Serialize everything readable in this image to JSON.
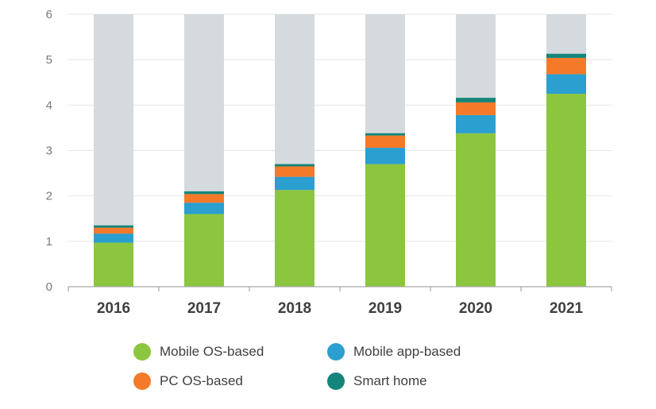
{
  "colors": {
    "mobile_os": "#8cc63f",
    "mobile_app": "#2a9fd0",
    "pc_os": "#f47a2a",
    "smart_home": "#14857a",
    "background_column": "#d4dadd",
    "grid": "#e4e4e4",
    "axis": "#a8a8a8"
  },
  "chart_data": {
    "type": "bar",
    "stacked": true,
    "categories": [
      "2016",
      "2017",
      "2018",
      "2019",
      "2020",
      "2021"
    ],
    "series": [
      {
        "name": "Mobile OS-based",
        "color": "#8cc63f",
        "values": [
          0.97,
          1.6,
          2.13,
          2.7,
          3.38,
          4.25
        ]
      },
      {
        "name": "Mobile app-based",
        "color": "#2a9fd0",
        "values": [
          0.2,
          0.25,
          0.29,
          0.36,
          0.4,
          0.43
        ]
      },
      {
        "name": "PC OS-based",
        "color": "#f47a2a",
        "values": [
          0.13,
          0.19,
          0.23,
          0.27,
          0.28,
          0.36
        ]
      },
      {
        "name": "Smart home",
        "color": "#14857a",
        "values": [
          0.05,
          0.06,
          0.05,
          0.05,
          0.1,
          0.09
        ]
      }
    ],
    "background_max": 6,
    "ylim": [
      0,
      6
    ],
    "yticks": [
      "0",
      "1",
      "2",
      "3",
      "4",
      "5",
      "6"
    ],
    "grid": true,
    "legend_position": "bottom"
  },
  "legend": {
    "items": [
      {
        "label": "Mobile OS-based",
        "color": "#8cc63f"
      },
      {
        "label": "Mobile app-based",
        "color": "#2a9fd0"
      },
      {
        "label": "PC OS-based",
        "color": "#f47a2a"
      },
      {
        "label": "Smart home",
        "color": "#14857a"
      }
    ]
  }
}
